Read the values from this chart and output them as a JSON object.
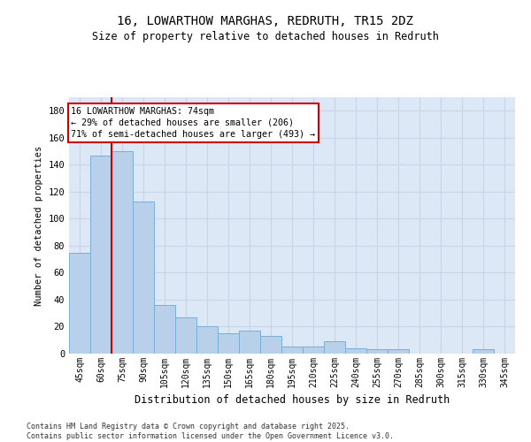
{
  "title1": "16, LOWARTHOW MARGHAS, REDRUTH, TR15 2DZ",
  "title2": "Size of property relative to detached houses in Redruth",
  "xlabel": "Distribution of detached houses by size in Redruth",
  "ylabel": "Number of detached properties",
  "categories": [
    "45sqm",
    "60sqm",
    "75sqm",
    "90sqm",
    "105sqm",
    "120sqm",
    "135sqm",
    "150sqm",
    "165sqm",
    "180sqm",
    "195sqm",
    "210sqm",
    "225sqm",
    "240sqm",
    "255sqm",
    "270sqm",
    "285sqm",
    "300sqm",
    "315sqm",
    "330sqm",
    "345sqm"
  ],
  "values": [
    75,
    147,
    150,
    113,
    36,
    27,
    20,
    15,
    17,
    13,
    5,
    5,
    9,
    4,
    3,
    3,
    0,
    0,
    0,
    3,
    0
  ],
  "bar_color": "#b8d0ea",
  "bar_edge_color": "#7aaed6",
  "vline_x_idx": 2,
  "annotation_line1": "16 LOWARTHOW MARGHAS: 74sqm",
  "annotation_line2": "← 29% of detached houses are smaller (206)",
  "annotation_line3": "71% of semi-detached houses are larger (493) →",
  "annotation_box_color": "#ffffff",
  "annotation_box_edge_color": "#cc0000",
  "vline_color": "#cc0000",
  "ylim": [
    0,
    190
  ],
  "grid_color": "#c8d4e8",
  "bg_color": "#dce8f5",
  "footer1": "Contains HM Land Registry data © Crown copyright and database right 2025.",
  "footer2": "Contains public sector information licensed under the Open Government Licence v3.0."
}
